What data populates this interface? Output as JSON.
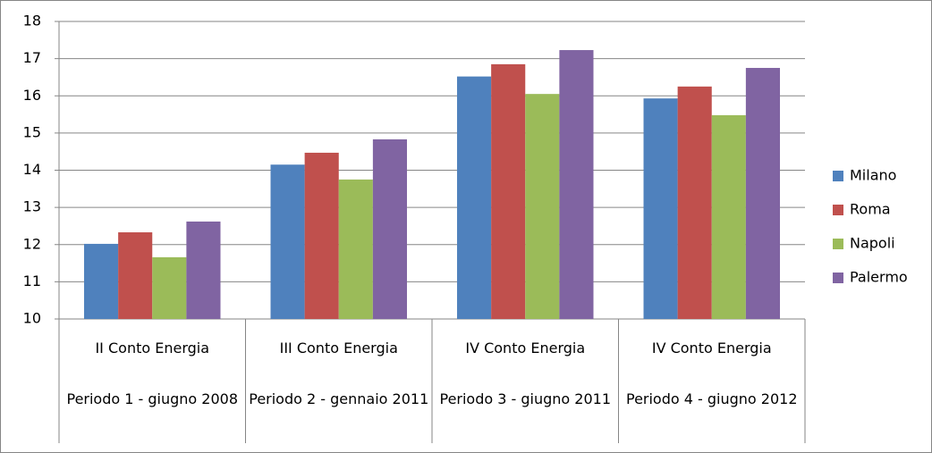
{
  "chart_data": {
    "type": "bar",
    "category_groups": [
      "II Conto Energia",
      "III Conto Energia",
      "IV Conto Energia",
      "IV Conto Energia"
    ],
    "categories": [
      "Periodo 1 - giugno 2008",
      "Periodo 2 - gennaio 2011",
      "Periodo 3 - giugno 2011",
      "Periodo 4 - giugno 2012"
    ],
    "series": [
      {
        "name": "Milano",
        "color": "#4f81bd",
        "values": [
          12.02,
          14.15,
          16.52,
          15.93
        ]
      },
      {
        "name": "Roma",
        "color": "#c0504d",
        "values": [
          12.33,
          14.47,
          16.85,
          16.25
        ]
      },
      {
        "name": "Napoli",
        "color": "#9bbb59",
        "values": [
          11.66,
          13.75,
          16.05,
          15.48
        ]
      },
      {
        "name": "Palermo",
        "color": "#8064a2",
        "values": [
          12.62,
          14.83,
          17.23,
          16.75
        ]
      }
    ],
    "ylim": [
      10,
      18
    ],
    "yticks": [
      10,
      11,
      12,
      13,
      14,
      15,
      16,
      17,
      18
    ],
    "grid": true,
    "legend": "right"
  }
}
